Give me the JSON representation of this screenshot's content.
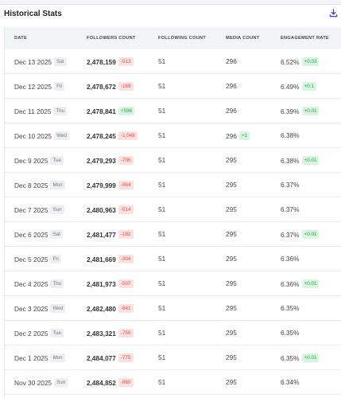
{
  "header": {
    "title": "Historical Stats"
  },
  "table": {
    "columns": [
      "Date",
      "Followers Count",
      "Following Count",
      "Media Count",
      "Engagement Rate"
    ],
    "rows": [
      {
        "date": "Dec 13 2025",
        "day": "Sat",
        "followers": "2,478,159",
        "followers_change": "-513",
        "following": "51",
        "media": "296",
        "engagement": "6.52%",
        "engagement_change": "+0.03"
      },
      {
        "date": "Dec 12 2025",
        "day": "Fri",
        "followers": "2,478,672",
        "followers_change": "-169",
        "following": "51",
        "media": "296",
        "engagement": "6.49%",
        "engagement_change": "+0.1"
      },
      {
        "date": "Dec 11 2025",
        "day": "Thu",
        "followers": "2,478,841",
        "followers_change": "+596",
        "following": "51",
        "media": "296",
        "engagement": "6.39%",
        "engagement_change": "+0.01"
      },
      {
        "date": "Dec 10 2025",
        "day": "Wed",
        "followers": "2,478,245",
        "followers_change": "-1,048",
        "following": "51",
        "media": "296",
        "media_change": "+1",
        "engagement": "6.38%"
      },
      {
        "date": "Dec 9 2025",
        "day": "Tue",
        "followers": "2,479,293",
        "followers_change": "-706",
        "following": "51",
        "media": "295",
        "engagement": "6.38%",
        "engagement_change": "+0.01"
      },
      {
        "date": "Dec 8 2025",
        "day": "Mon",
        "followers": "2,479,999",
        "followers_change": "-964",
        "following": "51",
        "media": "295",
        "engagement": "6.37%"
      },
      {
        "date": "Dec 7 2025",
        "day": "Sun",
        "followers": "2,480,963",
        "followers_change": "-514",
        "following": "51",
        "media": "295",
        "engagement": "6.37%"
      },
      {
        "date": "Dec 6 2025",
        "day": "Sat",
        "followers": "2,481,477",
        "followers_change": "-192",
        "following": "51",
        "media": "295",
        "engagement": "6.37%",
        "engagement_change": "+0.01"
      },
      {
        "date": "Dec 5 2025",
        "day": "Fri",
        "followers": "2,481,669",
        "followers_change": "-304",
        "following": "51",
        "media": "295",
        "engagement": "6.36%"
      },
      {
        "date": "Dec 4 2025",
        "day": "Thu",
        "followers": "2,481,973",
        "followers_change": "-507",
        "following": "51",
        "media": "295",
        "engagement": "6.36%",
        "engagement_change": "+0.01"
      },
      {
        "date": "Dec 3 2025",
        "day": "Wed",
        "followers": "2,482,480",
        "followers_change": "-841",
        "following": "51",
        "media": "295",
        "engagement": "6.35%"
      },
      {
        "date": "Dec 2 2025",
        "day": "Tue",
        "followers": "2,483,321",
        "followers_change": "-756",
        "following": "51",
        "media": "295",
        "engagement": "6.35%"
      },
      {
        "date": "Dec 1 2025",
        "day": "Mon",
        "followers": "2,484,077",
        "followers_change": "-775",
        "following": "51",
        "media": "295",
        "engagement": "6.35%",
        "engagement_change": "+0.01"
      },
      {
        "date": "Nov 30 2025",
        "day": "Sun",
        "followers": "2,484,852",
        "followers_change": "-860",
        "following": "51",
        "media": "295",
        "engagement": "6.34%"
      }
    ]
  }
}
